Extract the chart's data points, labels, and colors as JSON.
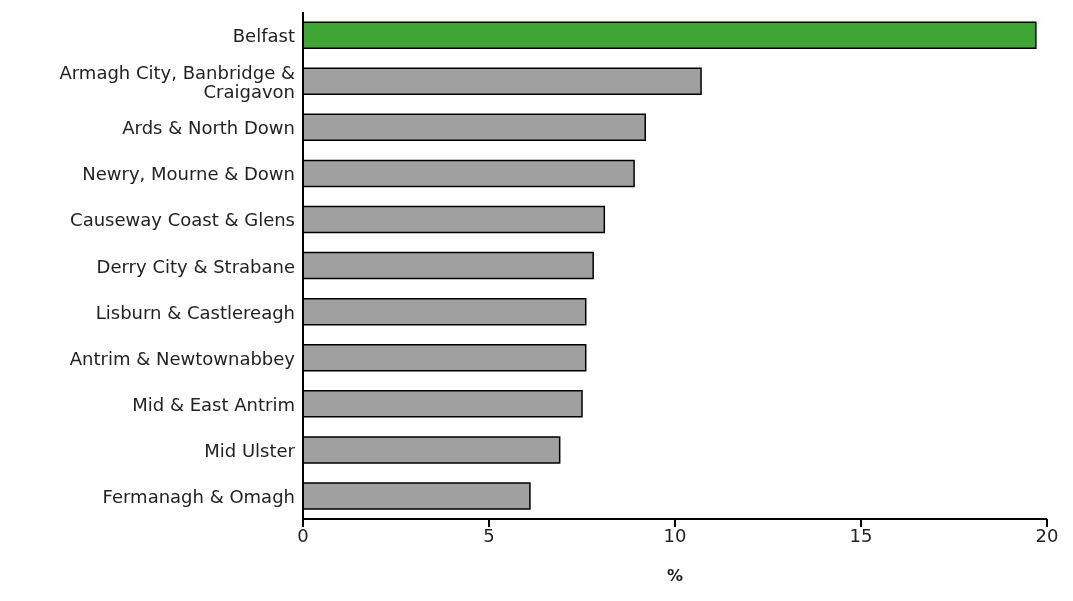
{
  "chart_data": {
    "type": "bar",
    "orientation": "horizontal",
    "xlabel": "%",
    "categories": [
      "Belfast",
      "Armagh City, Banbridge & Craigavon",
      "Ards & North Down",
      "Newry, Mourne & Down",
      "Causeway Coast & Glens",
      "Derry City & Strabane",
      "Lisburn & Castlereagh",
      "Antrim & Newtownabbey",
      "Mid & East Antrim",
      "Mid Ulster",
      "Fermanagh & Omagh"
    ],
    "values": [
      19.7,
      10.7,
      9.2,
      8.9,
      8.1,
      7.8,
      7.6,
      7.6,
      7.5,
      6.9,
      6.1
    ],
    "colors": [
      "#3fa535",
      "#a0a0a0",
      "#a0a0a0",
      "#a0a0a0",
      "#a0a0a0",
      "#a0a0a0",
      "#a0a0a0",
      "#a0a0a0",
      "#a0a0a0",
      "#a0a0a0",
      "#a0a0a0"
    ],
    "xlim": [
      0,
      20
    ],
    "xticks": [
      0,
      5,
      10,
      15,
      20
    ],
    "grid": false,
    "legend": false
  }
}
